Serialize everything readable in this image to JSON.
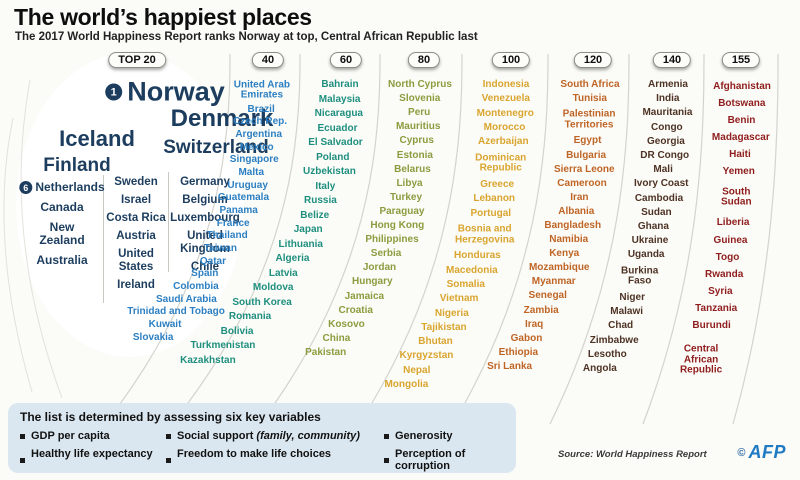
{
  "header": {
    "title": "The world’s happiest places",
    "subtitle": "The 2017 World Happiness Report ranks Norway at top, Central African Republic last"
  },
  "chart_data": {
    "type": "table",
    "title": "2017 World Happiness Report ranking, grouped in bands of 20 (1 = happiest, 155 = last)",
    "top20": {
      "label": "TOP 20",
      "color": "#1c3d5e",
      "featured": [
        {
          "rank": "1",
          "name": "Norway"
        },
        {
          "name": "Denmark"
        },
        {
          "name": "Iceland"
        },
        {
          "name": "Switzerland"
        },
        {
          "name": "Finland"
        }
      ],
      "columns": [
        [
          {
            "rank": "6",
            "name": "Netherlands"
          },
          {
            "name": "Canada"
          },
          {
            "name": "New\nZealand"
          },
          {
            "name": "Australia"
          }
        ],
        [
          {
            "name": "Sweden"
          },
          {
            "name": "Israel"
          },
          {
            "name": "Costa Rica"
          },
          {
            "name": "Austria"
          },
          {
            "name": "United\nStates"
          },
          {
            "name": "Ireland"
          }
        ],
        [
          {
            "name": "Germany"
          },
          {
            "name": "Belgium"
          },
          {
            "name": "Luxembourg"
          },
          {
            "name": "United\nKingdom"
          },
          {
            "name": "Chile"
          }
        ]
      ]
    },
    "bands": [
      {
        "label": "40",
        "color": "#2b7fc2",
        "countries": [
          "United Arab\nEmirates",
          "Brazil",
          "Czech Rep.",
          "Argentina",
          "Mexico",
          "Singapore",
          "Malta",
          "Uruguay",
          "Guatemala",
          "Panama",
          "France",
          "Thailand",
          "Taiwan",
          "Qatar",
          "Spain",
          "Colombia",
          "Saudi Arabia",
          "Trinidad and Tobago",
          "Kuwait",
          "Slovakia"
        ]
      },
      {
        "label": "60",
        "color": "#1e8f7f",
        "countries": [
          "Bahrain",
          "Malaysia",
          "Nicaragua",
          "Ecuador",
          "El Salvador",
          "Poland",
          "Uzbekistan",
          "Italy",
          "Russia",
          "Belize",
          "Japan",
          "Lithuania",
          "Algeria",
          "Latvia",
          "Moldova",
          "South Korea",
          "Romania",
          "Bolivia",
          "Turkmenistan",
          "Kazakhstan"
        ]
      },
      {
        "label": "80",
        "color": "#8c9c3f",
        "countries": [
          "North Cyprus",
          "Slovenia",
          "Peru",
          "Mauritius",
          "Cyprus",
          "Estonia",
          "Belarus",
          "Libya",
          "Turkey",
          "Paraguay",
          "Hong Kong",
          "Philippines",
          "Serbia",
          "Jordan",
          "Hungary",
          "Jamaica",
          "Croatia",
          "Kosovo",
          "China",
          "Pakistan"
        ]
      },
      {
        "label": "100",
        "color": "#d9a52f",
        "countries": [
          "Indonesia",
          "Venezuela",
          "Montenegro",
          "Morocco",
          "Azerbaijan",
          "Dominican\nRepublic",
          "Greece",
          "Lebanon",
          "Portugal",
          "Bosnia and\nHerzegovina",
          "Honduras",
          "Macedonia",
          "Somalia",
          "Vietnam",
          "Nigeria",
          "Tajikistan",
          "Bhutan",
          "Kyrgyzstan",
          "Nepal",
          "Mongolia"
        ]
      },
      {
        "label": "120",
        "color": "#bf6526",
        "countries": [
          "South Africa",
          "Tunisia",
          "Palestinian\nTerritories",
          "Egypt",
          "Bulgaria",
          "Sierra Leone",
          "Cameroon",
          "Iran",
          "Albania",
          "Bangladesh",
          "Namibia",
          "Kenya",
          "Mozambique",
          "Myanmar",
          "Senegal",
          "Zambia",
          "Iraq",
          "Gabon",
          "Ethiopia",
          "Sri Lanka"
        ]
      },
      {
        "label": "140",
        "color": "#4e3325",
        "countries": [
          "Armenia",
          "India",
          "Mauritania",
          "Congo",
          "Georgia",
          "DR Congo",
          "Mali",
          "Ivory Coast",
          "Cambodia",
          "Sudan",
          "Ghana",
          "Ukraine",
          "Uganda",
          "Burkina\nFaso",
          "Niger",
          "Malawi",
          "Chad",
          "Zimbabwe",
          "Lesotho",
          "Angola"
        ]
      },
      {
        "label": "155",
        "color": "#8f1d1d",
        "countries": [
          "Afghanistan",
          "Botswana",
          "Benin",
          "Madagascar",
          "Haiti",
          "Yemen",
          "South\nSudan",
          "Liberia",
          "Guinea",
          "Togo",
          "Rwanda",
          "Syria",
          "Tanzania",
          "Burundi",
          "Central\nAfrican\nRepublic"
        ]
      }
    ]
  },
  "legend": {
    "heading": "The list is determined by assessing six key variables",
    "items": [
      {
        "text": "GDP per capita"
      },
      {
        "text": "Social support",
        "note": "(family, community)"
      },
      {
        "text": "Generosity"
      },
      {
        "text": "Healthy life expectancy"
      },
      {
        "text": "Freedom to make life choices"
      },
      {
        "text": "Perception of corruption"
      }
    ]
  },
  "footer": {
    "source": "Source: World Happiness Report",
    "copyright": "©",
    "credit": "AFP"
  }
}
